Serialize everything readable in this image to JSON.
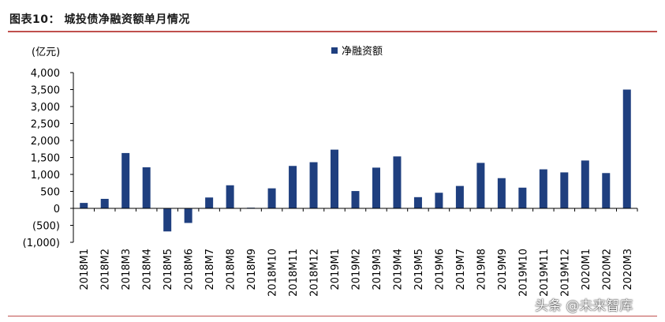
{
  "header": {
    "title": "图表10：  城投债净融资额单月情况"
  },
  "watermark": "头条 @未来智库",
  "chart_data": {
    "type": "bar",
    "unit_label": "(亿元)",
    "legend_position": "top-center",
    "grid": false,
    "color": "#1f3f7f",
    "ylim": [
      -1000,
      4000
    ],
    "yticks": [
      -1000,
      -500,
      0,
      500,
      1000,
      1500,
      2000,
      2500,
      3000,
      3500,
      4000
    ],
    "ytick_labels": [
      "(1,000)",
      "(500)",
      "0",
      "500",
      "1,000",
      "1,500",
      "2,000",
      "2,500",
      "3,000",
      "3,500",
      "4,000"
    ],
    "categories": [
      "2018M1",
      "2018M2",
      "2018M3",
      "2018M4",
      "2018M5",
      "2018M6",
      "2018M7",
      "2018M8",
      "2018M9",
      "2018M10",
      "2018M11",
      "2018M12",
      "2019M1",
      "2019M2",
      "2019M3",
      "2019M4",
      "2019M5",
      "2019M6",
      "2019M7",
      "2019M8",
      "2019M9",
      "2019M10",
      "2019M11",
      "2019M12",
      "2020M1",
      "2020M2",
      "2020M3"
    ],
    "series": [
      {
        "name": "净融资额",
        "values": [
          160,
          280,
          1630,
          1210,
          -680,
          -430,
          320,
          680,
          20,
          590,
          1250,
          1360,
          1730,
          510,
          1200,
          1530,
          330,
          460,
          660,
          1340,
          890,
          610,
          1150,
          1060,
          1410,
          1040,
          3500
        ]
      }
    ]
  }
}
